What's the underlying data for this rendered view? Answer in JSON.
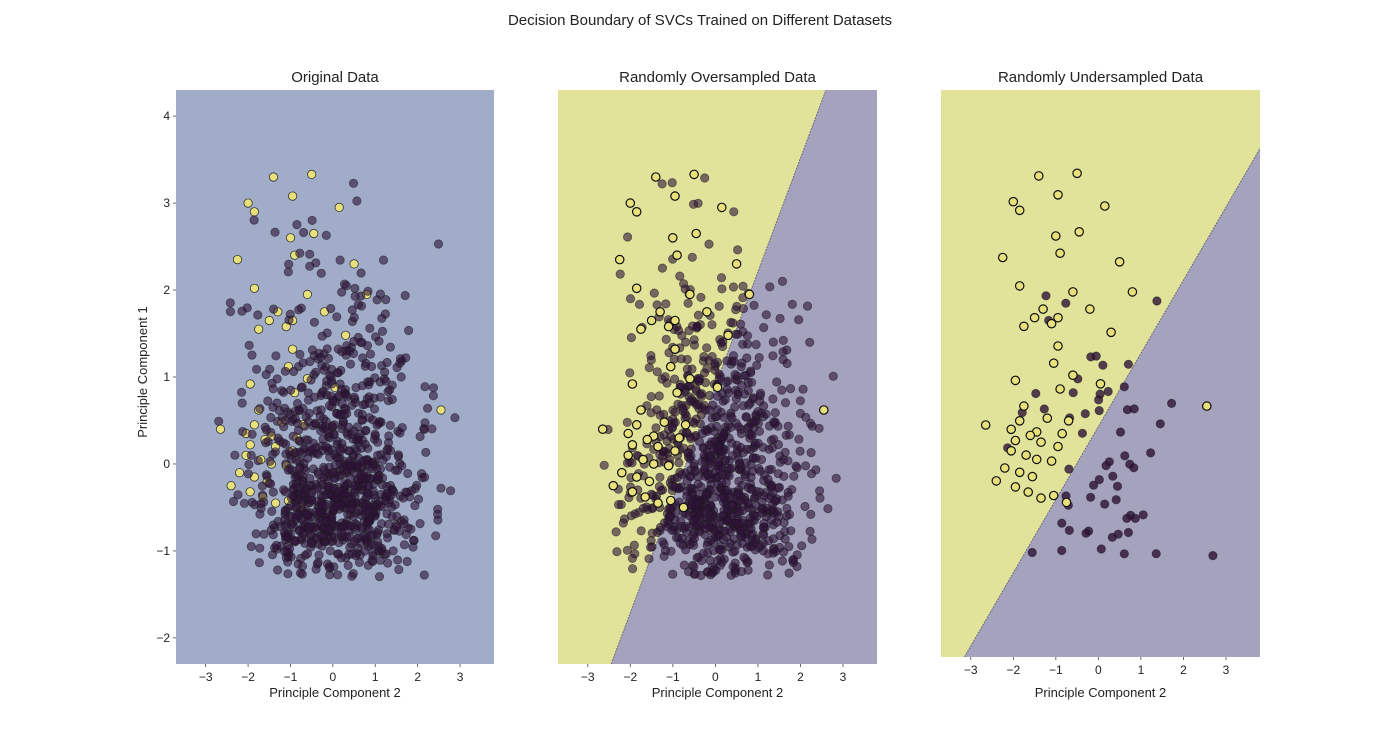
{
  "figure": {
    "suptitle": "Decision Boundary of SVCs Trained on Different Datasets"
  },
  "colors": {
    "class0_region": "#a4a2bd",
    "class1_region": "#e1e39b",
    "single_region": "#a1adc8",
    "class0_point": "#2f1238",
    "class1_point": "#e8e07a",
    "edge": "#1a1a1a"
  },
  "chart_data": [
    {
      "type": "scatter",
      "title": "Original Data",
      "xlabel": "Principle Component 2",
      "ylabel": "Principle Component 1",
      "xlim": [
        -3.7,
        3.8
      ],
      "ylim": [
        -2.3,
        4.3
      ],
      "xticks": [
        -3,
        -2,
        -1,
        0,
        1,
        2,
        3
      ],
      "yticks": [
        -2,
        -1,
        0,
        1,
        2,
        3,
        4
      ],
      "show_yticks": true,
      "grid": false,
      "boundary": null,
      "majority_n": 950,
      "majority_opacity": 0.6,
      "minority_on_top": false,
      "minority_outline": false,
      "minority_points": [
        [
          -1.4,
          3.3
        ],
        [
          -0.5,
          3.33
        ],
        [
          -0.95,
          3.08
        ],
        [
          -2.0,
          3.0
        ],
        [
          -1.85,
          2.9
        ],
        [
          0.15,
          2.95
        ],
        [
          -0.45,
          2.65
        ],
        [
          -1.0,
          2.6
        ],
        [
          -0.9,
          2.4
        ],
        [
          -2.25,
          2.35
        ],
        [
          0.5,
          2.3
        ],
        [
          -1.85,
          2.02
        ],
        [
          -0.6,
          1.95
        ],
        [
          0.8,
          1.95
        ],
        [
          -1.3,
          1.75
        ],
        [
          -0.2,
          1.75
        ],
        [
          -1.5,
          1.65
        ],
        [
          -0.95,
          1.65
        ],
        [
          -1.1,
          1.58
        ],
        [
          -1.75,
          1.55
        ],
        [
          0.3,
          1.48
        ],
        [
          -0.95,
          1.32
        ],
        [
          -1.05,
          1.12
        ],
        [
          -0.6,
          0.98
        ],
        [
          -1.95,
          0.92
        ],
        [
          0.05,
          0.88
        ],
        [
          -0.9,
          0.82
        ],
        [
          -1.75,
          0.62
        ],
        [
          -1.85,
          0.45
        ],
        [
          -1.2,
          0.48
        ],
        [
          -0.7,
          0.45
        ],
        [
          -2.05,
          0.35
        ],
        [
          -1.45,
          0.32
        ],
        [
          -0.85,
          0.3
        ],
        [
          -2.65,
          0.4
        ],
        [
          -1.6,
          0.28
        ],
        [
          -1.95,
          0.22
        ],
        [
          -1.35,
          0.2
        ],
        [
          -0.95,
          0.15
        ],
        [
          -2.05,
          0.1
        ],
        [
          -1.7,
          0.05
        ],
        [
          -1.45,
          0.0
        ],
        [
          -1.1,
          -0.02
        ],
        [
          -2.2,
          -0.1
        ],
        [
          -1.85,
          -0.15
        ],
        [
          -1.55,
          -0.2
        ],
        [
          -2.4,
          -0.25
        ],
        [
          -1.95,
          -0.32
        ],
        [
          -1.65,
          -0.38
        ],
        [
          -1.35,
          -0.45
        ],
        [
          -1.05,
          -0.42
        ],
        [
          -0.75,
          -0.5
        ],
        [
          2.55,
          0.62
        ]
      ]
    },
    {
      "type": "scatter",
      "title": "Randomly Oversampled Data",
      "xlabel": "Principle Component 2",
      "ylabel": "",
      "xlim": [
        -3.7,
        3.8
      ],
      "ylim": [
        -2.3,
        4.3
      ],
      "xticks": [
        -3,
        -2,
        -1,
        0,
        1,
        2,
        3
      ],
      "yticks": [],
      "show_yticks": false,
      "grid": false,
      "boundary": {
        "x_at_ymin": -2.45,
        "x_at_ymax": 2.6,
        "left_class": 1,
        "right_class": 0
      },
      "majority_n": 950,
      "majority_opacity": 0.6,
      "minority_on_top": true,
      "minority_outline": true,
      "minority_points": [
        [
          -1.4,
          3.3
        ],
        [
          -0.5,
          3.33
        ],
        [
          -0.95,
          3.08
        ],
        [
          -2.0,
          3.0
        ],
        [
          -1.85,
          2.9
        ],
        [
          0.15,
          2.95
        ],
        [
          -0.45,
          2.65
        ],
        [
          -1.0,
          2.6
        ],
        [
          -0.9,
          2.4
        ],
        [
          -2.25,
          2.35
        ],
        [
          0.5,
          2.3
        ],
        [
          -1.85,
          2.02
        ],
        [
          -0.6,
          1.95
        ],
        [
          0.8,
          1.95
        ],
        [
          -1.3,
          1.75
        ],
        [
          -0.2,
          1.75
        ],
        [
          -1.5,
          1.65
        ],
        [
          -0.95,
          1.65
        ],
        [
          -1.1,
          1.58
        ],
        [
          -1.75,
          1.55
        ],
        [
          0.3,
          1.48
        ],
        [
          -0.95,
          1.32
        ],
        [
          -1.05,
          1.12
        ],
        [
          -0.6,
          0.98
        ],
        [
          -1.95,
          0.92
        ],
        [
          0.05,
          0.88
        ],
        [
          -0.9,
          0.82
        ],
        [
          -1.75,
          0.62
        ],
        [
          -1.85,
          0.45
        ],
        [
          -1.2,
          0.48
        ],
        [
          -0.7,
          0.45
        ],
        [
          -2.05,
          0.35
        ],
        [
          -1.45,
          0.32
        ],
        [
          -0.85,
          0.3
        ],
        [
          -2.65,
          0.4
        ],
        [
          -1.6,
          0.28
        ],
        [
          -1.95,
          0.22
        ],
        [
          -1.35,
          0.2
        ],
        [
          -0.95,
          0.15
        ],
        [
          -2.05,
          0.1
        ],
        [
          -1.7,
          0.05
        ],
        [
          -1.45,
          0.0
        ],
        [
          -1.1,
          -0.02
        ],
        [
          -2.2,
          -0.1
        ],
        [
          -1.85,
          -0.15
        ],
        [
          -1.55,
          -0.2
        ],
        [
          -2.4,
          -0.25
        ],
        [
          -1.95,
          -0.32
        ],
        [
          -1.65,
          -0.38
        ],
        [
          -1.35,
          -0.45
        ],
        [
          -1.05,
          -0.42
        ],
        [
          -0.75,
          -0.5
        ],
        [
          2.55,
          0.62
        ]
      ]
    },
    {
      "type": "scatter",
      "title": "Randomly Undersampled Data",
      "xlabel": "Principle Component 2",
      "ylabel": "",
      "xlim": [
        -3.7,
        3.8
      ],
      "ylim": [
        -2.3,
        4.3
      ],
      "xticks": [
        -3,
        -2,
        -1,
        0,
        1,
        2,
        3
      ],
      "yticks": [],
      "show_yticks": false,
      "grid": false,
      "boundary": {
        "x_at_ymin": -3.15,
        "x_at_ymax": 4.6,
        "left_class": 1,
        "right_class": 0
      },
      "majority_n": 60,
      "majority_opacity": 0.8,
      "minority_on_top": true,
      "minority_outline": true,
      "minority_points": [
        [
          -1.4,
          3.3
        ],
        [
          -0.5,
          3.33
        ],
        [
          -0.95,
          3.08
        ],
        [
          -2.0,
          3.0
        ],
        [
          -1.85,
          2.9
        ],
        [
          0.15,
          2.95
        ],
        [
          -0.45,
          2.65
        ],
        [
          -1.0,
          2.6
        ],
        [
          -0.9,
          2.4
        ],
        [
          -2.25,
          2.35
        ],
        [
          0.5,
          2.3
        ],
        [
          -1.85,
          2.02
        ],
        [
          -0.6,
          1.95
        ],
        [
          0.8,
          1.95
        ],
        [
          -1.3,
          1.75
        ],
        [
          -0.2,
          1.75
        ],
        [
          -1.5,
          1.65
        ],
        [
          -0.95,
          1.65
        ],
        [
          -1.1,
          1.58
        ],
        [
          -1.75,
          1.55
        ],
        [
          0.3,
          1.48
        ],
        [
          -0.95,
          1.32
        ],
        [
          -1.05,
          1.12
        ],
        [
          -0.6,
          0.98
        ],
        [
          -1.95,
          0.92
        ],
        [
          0.05,
          0.88
        ],
        [
          -0.9,
          0.82
        ],
        [
          -1.75,
          0.62
        ],
        [
          -1.85,
          0.45
        ],
        [
          -1.2,
          0.48
        ],
        [
          -0.7,
          0.45
        ],
        [
          -2.05,
          0.35
        ],
        [
          -1.45,
          0.32
        ],
        [
          -0.85,
          0.3
        ],
        [
          -2.65,
          0.4
        ],
        [
          -1.6,
          0.28
        ],
        [
          -1.95,
          0.22
        ],
        [
          -1.35,
          0.2
        ],
        [
          -0.95,
          0.15
        ],
        [
          -2.05,
          0.1
        ],
        [
          -1.7,
          0.05
        ],
        [
          -1.45,
          0.0
        ],
        [
          -1.1,
          -0.02
        ],
        [
          -2.2,
          -0.1
        ],
        [
          -1.85,
          -0.15
        ],
        [
          -1.55,
          -0.2
        ],
        [
          -2.4,
          -0.25
        ],
        [
          -1.95,
          -0.32
        ],
        [
          -1.65,
          -0.38
        ],
        [
          -1.35,
          -0.45
        ],
        [
          -1.05,
          -0.42
        ],
        [
          -0.75,
          -0.5
        ],
        [
          2.55,
          0.62
        ]
      ]
    }
  ]
}
